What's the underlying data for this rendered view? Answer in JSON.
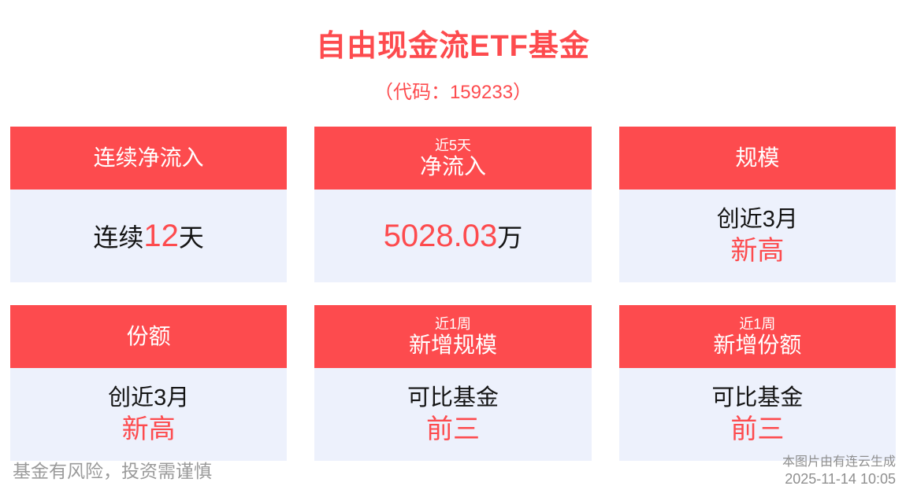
{
  "header": {
    "title": "自由现金流ETF基金",
    "subtitle": "（代码：159233）"
  },
  "cards": [
    {
      "id": "continuous-net-inflow",
      "header": {
        "main": "连续净流入"
      },
      "body": {
        "pre": "连续",
        "value": "12",
        "post": "天"
      }
    },
    {
      "id": "net-inflow-5d",
      "header": {
        "top": "近5天",
        "main": "净流入"
      },
      "body": {
        "value": "5028.03",
        "post": "万"
      }
    },
    {
      "id": "scale",
      "header": {
        "main": "规模"
      },
      "body": {
        "line1": "创近3月",
        "line2": "新高"
      }
    },
    {
      "id": "shares",
      "header": {
        "main": "份额"
      },
      "body": {
        "line1": "创近3月",
        "line2": "新高"
      }
    },
    {
      "id": "new-scale-1w",
      "header": {
        "top": "近1周",
        "main": "新增规模"
      },
      "body": {
        "line1": "可比基金",
        "line2": "前三"
      }
    },
    {
      "id": "new-shares-1w",
      "header": {
        "top": "近1周",
        "main": "新增份额"
      },
      "body": {
        "line1": "可比基金",
        "line2": "前三"
      }
    }
  ],
  "footer": {
    "disclaimer": "基金有风险，投资需谨慎",
    "credit": "本图片由有连云生成",
    "timestamp": "2025-11-14 10:05"
  },
  "colors": {
    "accent_red": "#fd4b4e",
    "card_body_bg": "#edf1fc",
    "dark_text": "#141414",
    "footer_gray": "#9a9a9a"
  }
}
